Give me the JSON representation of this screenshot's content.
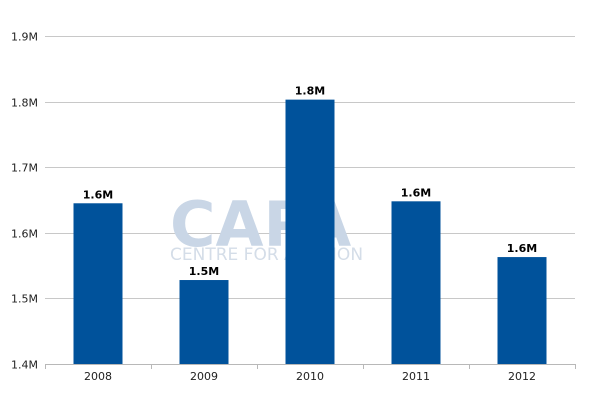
{
  "chart_data": {
    "type": "bar",
    "categories": [
      "2008",
      "2009",
      "2010",
      "2011",
      "2012"
    ],
    "values": [
      1.645,
      1.528,
      1.803,
      1.648,
      1.563
    ],
    "data_labels": [
      "1.6M",
      "1.5M",
      "1.8M",
      "1.6M",
      "1.6M"
    ],
    "y_ticks": [
      1.4,
      1.5,
      1.6,
      1.7,
      1.8,
      1.9
    ],
    "y_tick_labels": [
      "1.4M",
      "1.5M",
      "1.6M",
      "1.7M",
      "1.8M",
      "1.9M"
    ],
    "ylim": [
      1.4,
      1.9
    ],
    "grid": true,
    "bar_color": "#00529b",
    "grid_color": "#c8c8c8"
  },
  "watermark": {
    "logo_text": "CAPA",
    "tagline": "CENTRE FOR AVIATION"
  }
}
